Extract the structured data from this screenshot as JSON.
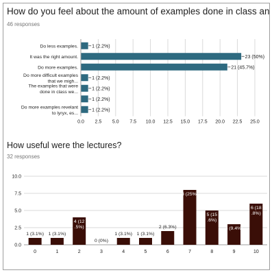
{
  "questions": [
    {
      "title": "How do you feel about the amount of examples done in class and labs.",
      "responses": "46 responses"
    },
    {
      "title": "How useful were the lectures?",
      "responses": "32 responses"
    }
  ],
  "colors": {
    "bar_horizontal": "#2e6a80",
    "bar_vertical": "#3a0e07",
    "gridline": "#d9d9d9",
    "text": "#212121",
    "subtext": "#757575"
  },
  "chart_data": [
    {
      "type": "bar",
      "orientation": "horizontal",
      "categories": [
        "Do less examples.",
        "It was the right amount.",
        "Do more examples.",
        "Do more difficult examples that we migh...",
        "The examples that were done in class we...",
        "",
        "Do more examples revelant to lyryx, es..."
      ],
      "values": [
        1,
        23,
        21,
        1,
        1,
        1,
        1
      ],
      "data_labels": [
        "1 (2.2%)",
        "23 (50%)",
        "21 (45.7%)",
        "1 (2.2%)",
        "1 (2.2%)",
        "1 (2.2%)",
        "1 (2.2%)"
      ],
      "xlim": [
        0,
        25
      ],
      "xticks": [
        "0.0",
        "2.5",
        "5.0",
        "7.5",
        "10.0",
        "12.5",
        "15.0",
        "17.5",
        "20.0",
        "22.5",
        "25.0"
      ],
      "grid": true
    },
    {
      "type": "bar",
      "orientation": "vertical",
      "categories": [
        "0",
        "1",
        "2",
        "3",
        "4",
        "5",
        "6",
        "7",
        "8",
        "9",
        "10"
      ],
      "values": [
        1,
        1,
        4,
        0,
        1,
        1,
        2,
        8,
        5,
        3,
        6
      ],
      "data_labels": [
        "1 (3.1%)",
        "1 (3.1%)",
        "4 (12.5%)",
        "0 (0%)",
        "1 (3.1%)",
        "1 (3.1%)",
        "2 (6.3%)",
        "8 (25%)",
        "5 (15.6%)",
        "3 (9.4%)",
        "6 (18.8%)"
      ],
      "ylim": [
        0,
        10
      ],
      "yticks": [
        "0.0",
        "2.5",
        "5.0",
        "7.5",
        "10.0"
      ],
      "grid": true
    }
  ]
}
